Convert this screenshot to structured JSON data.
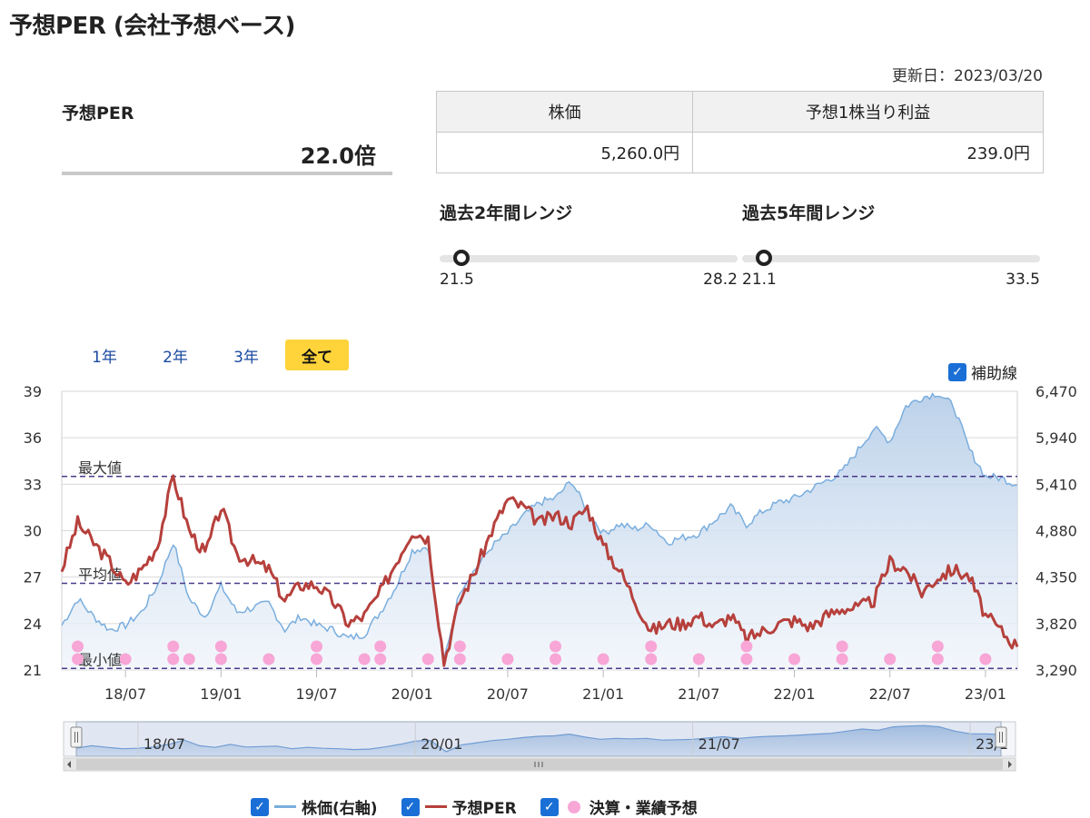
{
  "page_title": "予想PER (会社予想ベース)",
  "updated": "更新日：2023/03/20",
  "per": {
    "label": "予想PER",
    "value": "22.0倍"
  },
  "price_table": {
    "headers": [
      "株価",
      "予想1株当り利益"
    ],
    "values": [
      "5,260.0円",
      "239.0円"
    ]
  },
  "range_2y": {
    "title": "過去2年間レンジ",
    "min": "21.5",
    "max": "28.2",
    "current": 22.0
  },
  "range_5y": {
    "title": "過去5年間レンジ",
    "min": "21.1",
    "max": "33.5",
    "current": 22.0
  },
  "period_tabs": [
    {
      "label": "1年",
      "active": false
    },
    {
      "label": "2年",
      "active": false
    },
    {
      "label": "3年",
      "active": false
    },
    {
      "label": "全て",
      "active": true
    }
  ],
  "guide_label": "補助線",
  "legend": {
    "price": "株価(右軸)",
    "per": "予想PER",
    "events": "決算・業績予想"
  },
  "colors": {
    "price": "#7aaede",
    "price_fill": "#c6d7ec",
    "per": "#b6403c",
    "event": "#f7a6d6",
    "accent": "#ffd43b",
    "checkbox": "#1a6fd6"
  },
  "chart_data": {
    "type": "line",
    "x_tick_labels": [
      "18/07",
      "19/01",
      "19/07",
      "20/01",
      "20/07",
      "21/01",
      "21/07",
      "22/01",
      "22/07",
      "23/01"
    ],
    "navigator_labels": [
      "18/07",
      "20/01",
      "21/07",
      "23/1"
    ],
    "left_axis": {
      "ylim": [
        21,
        39
      ],
      "ticks": [
        21,
        24,
        27,
        30,
        33,
        36,
        39
      ]
    },
    "right_axis": {
      "ylim": [
        3290,
        6470
      ],
      "ticks": [
        "3,290",
        "3,820",
        "4,350",
        "4,880",
        "5,410",
        "5,940",
        "6,470"
      ]
    },
    "reference_lines": [
      {
        "label": "最大値",
        "value": 33.5
      },
      {
        "label": "平均値",
        "value": 26.6
      },
      {
        "label": "最小値",
        "value": 21.1
      }
    ],
    "series": [
      {
        "name": "予想PER",
        "axis": "left",
        "x": [
          "18/03",
          "18/04",
          "18/05",
          "18/06",
          "18/07",
          "18/08",
          "18/09",
          "18/10",
          "18/11",
          "18/12",
          "19/01",
          "19/02",
          "19/03",
          "19/04",
          "19/05",
          "19/06",
          "19/07",
          "19/08",
          "19/09",
          "19/10",
          "19/11",
          "19/12",
          "20/01",
          "20/02",
          "20/03",
          "20/04",
          "20/05",
          "20/06",
          "20/07",
          "20/08",
          "20/09",
          "20/10",
          "20/11",
          "20/12",
          "21/01",
          "21/02",
          "21/03",
          "21/04",
          "21/05",
          "21/06",
          "21/07",
          "21/08",
          "21/09",
          "21/10",
          "21/11",
          "21/12",
          "22/01",
          "22/02",
          "22/03",
          "22/04",
          "22/05",
          "22/06",
          "22/07",
          "22/08",
          "22/09",
          "22/10",
          "22/11",
          "22/12",
          "23/01",
          "23/02",
          "23/03"
        ],
        "values": [
          27.5,
          30.5,
          29.2,
          28.0,
          26.5,
          27.5,
          29.0,
          33.5,
          30.0,
          28.5,
          31.5,
          28.5,
          28.0,
          27.5,
          25.5,
          26.5,
          26.5,
          25.5,
          24.0,
          24.5,
          26.0,
          28.0,
          30.0,
          29.5,
          21.5,
          25.5,
          27.5,
          30.0,
          32.0,
          31.5,
          30.5,
          31.0,
          30.5,
          31.5,
          29.0,
          27.5,
          25.5,
          23.5,
          24.0,
          24.0,
          24.5,
          23.8,
          24.5,
          23.0,
          23.5,
          24.0,
          24.2,
          23.8,
          24.5,
          25.0,
          25.0,
          25.5,
          28.0,
          27.5,
          26.0,
          27.0,
          27.5,
          27.0,
          24.5,
          23.5,
          22.5
        ]
      },
      {
        "name": "株価(右軸)",
        "axis": "right",
        "x": [
          "18/03",
          "18/04",
          "18/05",
          "18/06",
          "18/07",
          "18/08",
          "18/09",
          "18/10",
          "18/11",
          "18/12",
          "19/01",
          "19/02",
          "19/03",
          "19/04",
          "19/05",
          "19/06",
          "19/07",
          "19/08",
          "19/09",
          "19/10",
          "19/11",
          "19/12",
          "20/01",
          "20/02",
          "20/03",
          "20/04",
          "20/05",
          "20/06",
          "20/07",
          "20/08",
          "20/09",
          "20/10",
          "20/11",
          "20/12",
          "21/01",
          "21/02",
          "21/03",
          "21/04",
          "21/05",
          "21/06",
          "21/07",
          "21/08",
          "21/09",
          "21/10",
          "21/11",
          "21/12",
          "22/01",
          "22/02",
          "22/03",
          "22/04",
          "22/05",
          "22/06",
          "22/07",
          "22/08",
          "22/09",
          "22/10",
          "22/11",
          "22/12",
          "23/01",
          "23/02",
          "23/03"
        ],
        "values": [
          3800,
          4100,
          3900,
          3750,
          3800,
          3950,
          4250,
          4750,
          4100,
          3900,
          4250,
          3950,
          4000,
          4050,
          3750,
          3900,
          3800,
          3750,
          3650,
          3700,
          3950,
          4250,
          4650,
          4700,
          3400,
          4200,
          4450,
          4700,
          4850,
          5050,
          5200,
          5250,
          5450,
          5100,
          4850,
          4950,
          4900,
          4950,
          4750,
          4800,
          4850,
          5000,
          5150,
          4950,
          5100,
          5200,
          5250,
          5350,
          5450,
          5550,
          5800,
          6050,
          5900,
          6300,
          6400,
          6450,
          6300,
          5800,
          5500,
          5480,
          5400
        ]
      }
    ],
    "events": {
      "name": "決算・業績予想",
      "x": [
        "18/04",
        "18/07",
        "18/10",
        "18/11",
        "19/01",
        "19/04",
        "19/07",
        "19/10",
        "19/11",
        "20/02",
        "20/04",
        "20/07",
        "20/10",
        "21/01",
        "21/04",
        "21/07",
        "21/10",
        "22/01",
        "22/04",
        "22/07",
        "22/10",
        "23/01"
      ]
    },
    "legend": [
      "株価(右軸)",
      "予想PER",
      "決算・業績予想"
    ]
  }
}
